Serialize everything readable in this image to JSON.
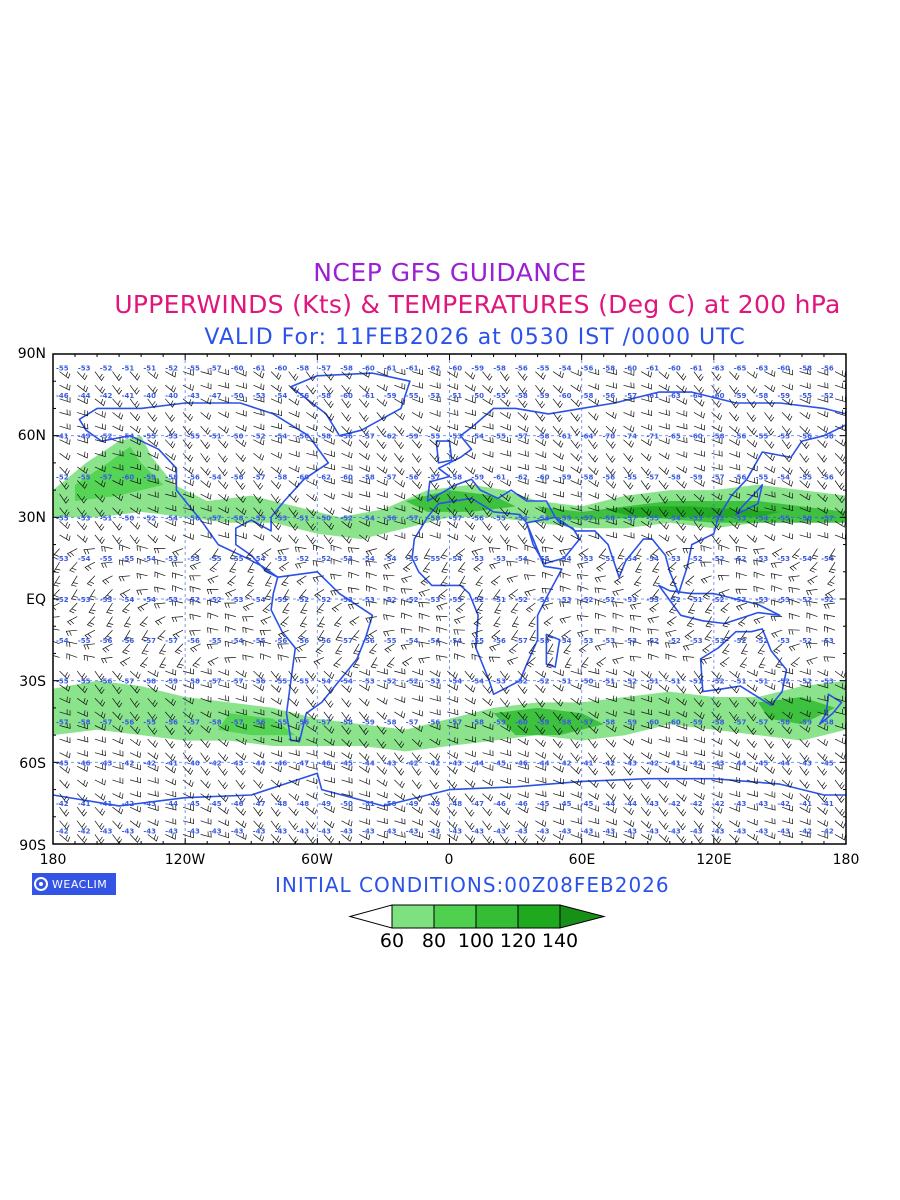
{
  "titles": {
    "line1": "NCEP GFS GUIDANCE",
    "line2": "UPPERWINDS (Kts) & TEMPERATURES (Deg C) at 200 hPa",
    "line3": "VALID For: 11FEB2026 at 0530 IST /0000 UTC"
  },
  "colors": {
    "title1": "#9b1fd3",
    "title2": "#e0157d",
    "title3": "#2b52e8",
    "coast": "#2b52e8",
    "temp_text": "#3a5be0",
    "barb": "#111111",
    "logo_bg": "#3454e6",
    "jet_levels": [
      "#7ee07e",
      "#4fd14f",
      "#35bd35",
      "#1fa91f",
      "#169016"
    ]
  },
  "axes": {
    "lat_labels": [
      "90N",
      "60N",
      "30N",
      "EQ",
      "30S",
      "60S",
      "90S"
    ],
    "lon_labels": [
      "180",
      "120W",
      "60W",
      "0",
      "60E",
      "120E",
      "180"
    ]
  },
  "logo": {
    "text": "WEACLIM",
    "icon": "weaclim-logo-icon"
  },
  "initial_conditions": "INITIAL CONDITIONS:00Z08FEB2026",
  "colorbar": {
    "unit": "Kts",
    "levels": [
      "60",
      "80",
      "100",
      "120",
      "140"
    ]
  },
  "temperature_rows": [
    {
      "lat": "85N",
      "values": [
        "-55",
        "-53",
        "-52",
        "-51",
        "-51",
        "-52",
        "-55",
        "-57",
        "-60",
        "-61",
        "-60",
        "-58",
        "-57",
        "-58",
        "-60",
        "-61",
        "-61",
        "-62",
        "-60",
        "-59",
        "-58",
        "-56",
        "-55",
        "-54",
        "-56",
        "-58",
        "-60",
        "-61",
        "-60",
        "-61",
        "-63",
        "-65",
        "-63",
        "-60",
        "-58",
        "-56"
      ]
    },
    {
      "lat": "75N",
      "values": [
        "-46",
        "-44",
        "-42",
        "-41",
        "-40",
        "-40",
        "-43",
        "-47",
        "-50",
        "-53",
        "-54",
        "-56",
        "-58",
        "-60",
        "-61",
        "-59",
        "-55",
        "-53",
        "-51",
        "-50",
        "-55",
        "-58",
        "-59",
        "-60",
        "-58",
        "-56",
        "-57",
        "-61",
        "-63",
        "-64",
        "-60",
        "-59",
        "-58",
        "-59",
        "-55",
        "-52"
      ]
    },
    {
      "lat": "60N",
      "values": [
        "-41",
        "-49",
        "-52",
        "-54",
        "-55",
        "-53",
        "-55",
        "-51",
        "-50",
        "-52",
        "-54",
        "-56",
        "-58",
        "-56",
        "-57",
        "-62",
        "-59",
        "-55",
        "-53",
        "-54",
        "-55",
        "-57",
        "-58",
        "-61",
        "-64",
        "-70",
        "-74",
        "-71",
        "-65",
        "-60",
        "-58",
        "-56",
        "-55",
        "-55",
        "-56",
        "-58"
      ]
    },
    {
      "lat": "45N",
      "values": [
        "-52",
        "-55",
        "-57",
        "-60",
        "-59",
        "-58",
        "-56",
        "-54",
        "-56",
        "-57",
        "-58",
        "-60",
        "-62",
        "-60",
        "-58",
        "-57",
        "-56",
        "-57",
        "-58",
        "-59",
        "-61",
        "-62",
        "-60",
        "-59",
        "-58",
        "-56",
        "-55",
        "-57",
        "-58",
        "-59",
        "-57",
        "-56",
        "-55",
        "-54",
        "-55",
        "-56"
      ]
    },
    {
      "lat": "30N",
      "values": [
        "-55",
        "-53",
        "-51",
        "-50",
        "-52",
        "-54",
        "-56",
        "-57",
        "-58",
        "-55",
        "-53",
        "-51",
        "-50",
        "-52",
        "-54",
        "-56",
        "-57",
        "-58",
        "-57",
        "-56",
        "-55",
        "-54",
        "-53",
        "-55",
        "-57",
        "-58",
        "-57",
        "-55",
        "-54",
        "-53",
        "-52",
        "-53",
        "-54",
        "-55",
        "-56",
        "-57"
      ]
    },
    {
      "lat": "15N",
      "values": [
        "-53",
        "-54",
        "-55",
        "-55",
        "-54",
        "-53",
        "-53",
        "-55",
        "-55",
        "-54",
        "-53",
        "-52",
        "-52",
        "-53",
        "-54",
        "-54",
        "-55",
        "-55",
        "-54",
        "-53",
        "-53",
        "-54",
        "-55",
        "-54",
        "-53",
        "-53",
        "-54",
        "-54",
        "-53",
        "-52",
        "-52",
        "-52",
        "-53",
        "-53",
        "-54",
        "-54"
      ]
    },
    {
      "lat": "EQ",
      "values": [
        "-52",
        "-53",
        "-53",
        "-54",
        "-54",
        "-53",
        "-52",
        "-52",
        "-53",
        "-54",
        "-53",
        "-52",
        "-52",
        "-53",
        "-53",
        "-52",
        "-52",
        "-53",
        "-53",
        "-52",
        "-51",
        "-52",
        "-53",
        "-53",
        "-52",
        "-52",
        "-53",
        "-53",
        "-52",
        "-51",
        "-52",
        "-52",
        "-53",
        "-53",
        "-52",
        "-52"
      ]
    },
    {
      "lat": "15S",
      "values": [
        "-54",
        "-55",
        "-56",
        "-56",
        "-57",
        "-57",
        "-56",
        "-55",
        "-54",
        "-55",
        "-56",
        "-56",
        "-56",
        "-57",
        "-56",
        "-55",
        "-54",
        "-54",
        "-54",
        "-55",
        "-56",
        "-57",
        "-55",
        "-54",
        "-53",
        "-53",
        "-53",
        "-52",
        "-52",
        "-53",
        "-53",
        "-52",
        "-52",
        "-53",
        "-52",
        "-53"
      ]
    },
    {
      "lat": "30S",
      "values": [
        "-55",
        "-55",
        "-56",
        "-57",
        "-58",
        "-59",
        "-58",
        "-57",
        "-57",
        "-56",
        "-55",
        "-55",
        "-54",
        "-54",
        "-53",
        "-52",
        "-52",
        "-53",
        "-54",
        "-54",
        "-53",
        "-52",
        "-52",
        "-51",
        "-50",
        "-51",
        "-52",
        "-51",
        "-51",
        "-51",
        "-52",
        "-51",
        "-51",
        "-52",
        "-52",
        "-53"
      ]
    },
    {
      "lat": "45S",
      "values": [
        "-57",
        "-58",
        "-57",
        "-56",
        "-55",
        "-56",
        "-57",
        "-58",
        "-57",
        "-56",
        "-55",
        "-56",
        "-57",
        "-58",
        "-59",
        "-58",
        "-57",
        "-56",
        "-57",
        "-58",
        "-59",
        "-60",
        "-59",
        "-58",
        "-57",
        "-58",
        "-59",
        "-60",
        "-60",
        "-59",
        "-58",
        "-57",
        "-57",
        "-58",
        "-59",
        "-58"
      ]
    },
    {
      "lat": "60S",
      "values": [
        "-45",
        "-46",
        "-43",
        "-42",
        "-42",
        "-41",
        "-40",
        "-42",
        "-43",
        "-44",
        "-46",
        "-47",
        "-46",
        "-45",
        "-44",
        "-43",
        "-42",
        "-42",
        "-43",
        "-44",
        "-45",
        "-46",
        "-44",
        "-42",
        "-41",
        "-42",
        "-43",
        "-42",
        "-41",
        "-42",
        "-43",
        "-44",
        "-45",
        "-44",
        "-43",
        "-45"
      ]
    },
    {
      "lat": "75S",
      "values": [
        "-42",
        "-41",
        "-41",
        "-42",
        "-43",
        "-44",
        "-45",
        "-45",
        "-46",
        "-47",
        "-48",
        "-48",
        "-49",
        "-50",
        "-51",
        "-50",
        "-49",
        "-49",
        "-48",
        "-47",
        "-46",
        "-46",
        "-45",
        "-45",
        "-45",
        "-44",
        "-44",
        "-43",
        "-42",
        "-42",
        "-42",
        "-43",
        "-43",
        "-42",
        "-41",
        "-41"
      ]
    },
    {
      "lat": "85S",
      "values": [
        "-42",
        "-42",
        "-43",
        "-43",
        "-43",
        "-43",
        "-43",
        "-43",
        "-43",
        "-43",
        "-43",
        "-43",
        "-43",
        "-43",
        "-43",
        "-43",
        "-43",
        "-43",
        "-43",
        "-43",
        "-43",
        "-43",
        "-43",
        "-43",
        "-43",
        "-43",
        "-43",
        "-43",
        "-43",
        "-43",
        "-43",
        "-43",
        "-43",
        "-43",
        "-42",
        "-42"
      ]
    }
  ]
}
